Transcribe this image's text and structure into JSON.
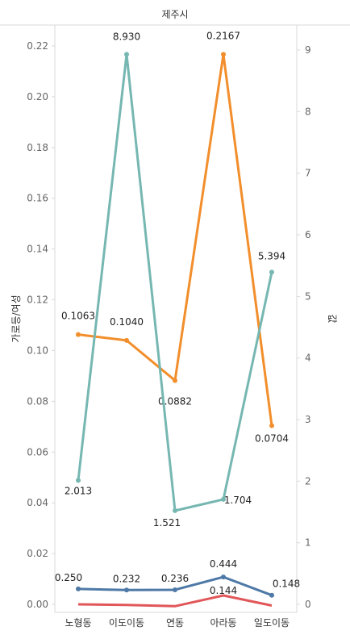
{
  "chart_data": {
    "type": "line",
    "title": "제주시",
    "categories": [
      "노형동",
      "이도이동",
      "연동",
      "아라동",
      "일도이동"
    ],
    "y_left": {
      "label": "가로등/여성",
      "ticks": [
        "0.00",
        "0.02",
        "0.04",
        "0.06",
        "0.08",
        "0.10",
        "0.12",
        "0.14",
        "0.16",
        "0.18",
        "0.20",
        "0.22"
      ],
      "range": [
        0,
        0.23
      ]
    },
    "y_right": {
      "label": "값",
      "ticks": [
        "0",
        "1",
        "2",
        "3",
        "4",
        "5",
        "6",
        "7",
        "8",
        "9"
      ],
      "range": [
        0,
        9.2
      ]
    },
    "series": [
      {
        "axis": "left",
        "color": "#f28e2b",
        "values": [
          0.1063,
          0.104,
          0.0882,
          0.2167,
          0.0704
        ],
        "labels": [
          "0.1063",
          "0.1040",
          "0.0882",
          "0.2167",
          "0.0704"
        ]
      },
      {
        "axis": "right",
        "color": "#76b7b2",
        "values": [
          2.013,
          8.93,
          1.521,
          1.704,
          5.394
        ],
        "labels": [
          "2.013",
          "8.930",
          "1.521",
          "1.704",
          "5.394"
        ]
      },
      {
        "axis": "right",
        "color": "#4e79a7",
        "values": [
          0.25,
          0.232,
          0.236,
          0.444,
          0.148
        ],
        "labels": [
          "0.250",
          "0.232",
          "0.236",
          "0.444",
          "0.148"
        ]
      },
      {
        "axis": "right",
        "color": "#e15759",
        "values": [
          0.0,
          -0.01,
          -0.03,
          0.144,
          -0.02
        ],
        "labels": [
          "",
          "",
          "",
          "0.144",
          ""
        ]
      }
    ],
    "grid": false
  }
}
